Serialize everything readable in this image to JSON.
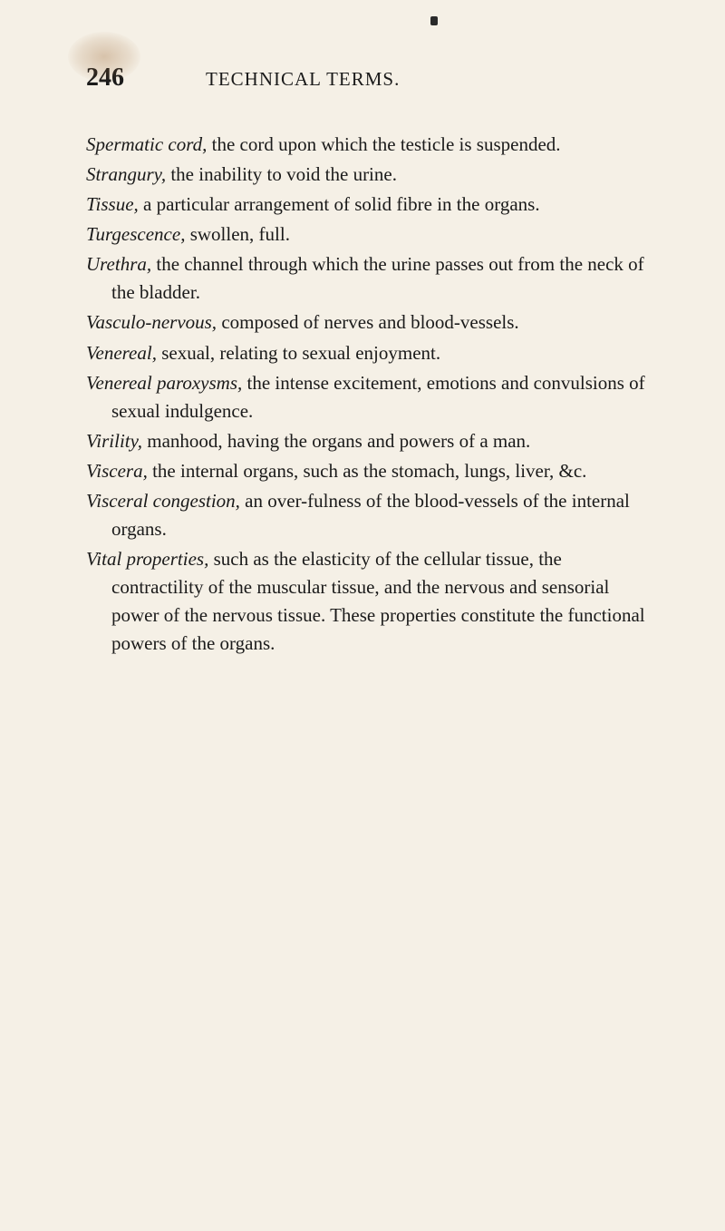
{
  "page": {
    "number": "246",
    "title": "TECHNICAL TERMS."
  },
  "definitions": [
    {
      "term": "Spermatic cord,",
      "text": " the cord upon which the testicle is suspended."
    },
    {
      "term": "Strangury,",
      "text": " the inability to void the urine."
    },
    {
      "term": "Tissue,",
      "text": " a particular arrangement of solid fibre in the organs."
    },
    {
      "term": "Turgescence,",
      "text": " swollen, full."
    },
    {
      "term": "Urethra,",
      "text": " the channel through which the urine passes out from the neck of the bladder."
    },
    {
      "term": "Vasculo-nervous,",
      "text": " composed of nerves and blood-vessels."
    },
    {
      "term": "Venereal,",
      "text": " sexual, relating to sexual enjoyment."
    },
    {
      "term": "Venereal paroxysms,",
      "text": " the intense excitement, emotions and convulsions of sexual indulgence."
    },
    {
      "term": "Virility,",
      "text": " manhood, having the organs and powers of a man."
    },
    {
      "term": "Viscera,",
      "text": " the internal organs, such as the stomach, lungs, liver, &c."
    },
    {
      "term": "Visceral congestion,",
      "text": " an over-fulness of the blood-vessels of the internal organs."
    },
    {
      "term": "Vital properties,",
      "text": " such as the elasticity of the cellular tissue, the contractility of the muscular tissue, and the nervous and sensorial power of the nervous tissue. These properties constitute the functional powers of the organs."
    }
  ]
}
